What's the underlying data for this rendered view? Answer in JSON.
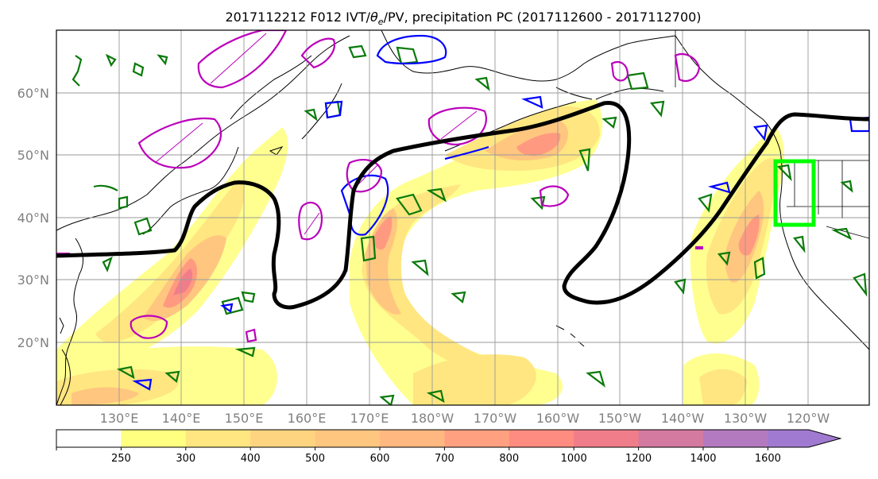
{
  "title_main": "2017112212 F012 IVT/",
  "title_theta": "θ",
  "title_sub": "e",
  "title_rest": "/PV, precipitation PC (2017112600 - 2017112700)",
  "lat_labels": [
    "60°N",
    "50°N",
    "40°N",
    "30°N",
    "20°N"
  ],
  "lon_labels": [
    "130°E",
    "140°E",
    "150°E",
    "160°E",
    "170°E",
    "180°W",
    "170°W",
    "160°W",
    "150°W",
    "140°W",
    "130°W",
    "120°W"
  ],
  "colorbar": {
    "ticks": [
      "250",
      "300",
      "400",
      "500",
      "600",
      "700",
      "800",
      "1000",
      "1200",
      "1400",
      "1600"
    ],
    "colors": [
      "#ffffff",
      "#ffff80",
      "#ffe680",
      "#ffd480",
      "#ffc680",
      "#ffb880",
      "#ffa080",
      "#ff8c80",
      "#f07e8a",
      "#d47aa0",
      "#b47ac0",
      "#a07ad0"
    ]
  },
  "region_box_color": "#00ff00"
}
